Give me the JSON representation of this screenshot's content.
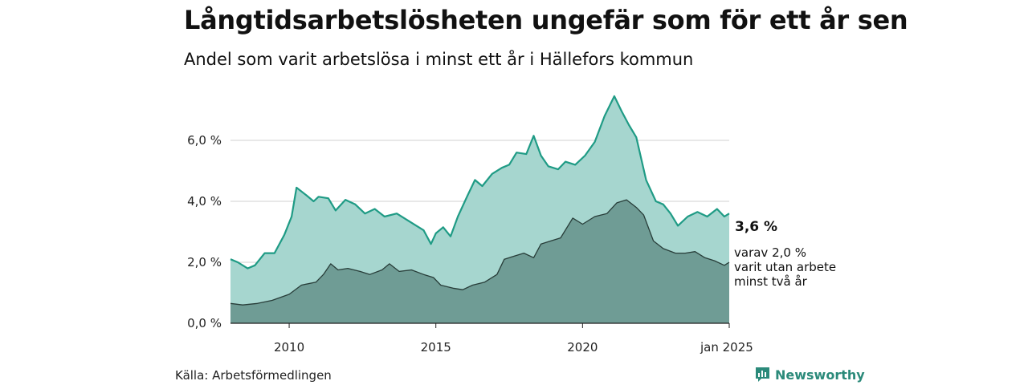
{
  "title": "Långtidsarbetslösheten ungefär som för ett år sen",
  "subtitle": "Andel som varit arbetslösa i minst ett år i Hällefors kommun",
  "source": "Källa: Arbetsförmedlingen",
  "brand": {
    "name": "Newsworthy",
    "icon": "newsworthy-logo-icon"
  },
  "colors": {
    "total_fill": "#a6d6cf",
    "total_line": "#1f9b85",
    "long_fill": "#6f9c95",
    "long_line": "#283d39",
    "grid": "#d9d9d9",
    "brand": "#2b8a7a"
  },
  "chart_data": {
    "type": "area",
    "ylim": [
      0,
      7.5
    ],
    "yticks": [
      0,
      2,
      4,
      6
    ],
    "ytick_labels": [
      "0,0 %",
      "2,0 %",
      "4,0 %",
      "6,0 %"
    ],
    "xlim": [
      "2008-01",
      "2025-01"
    ],
    "xticks": [
      "2010-01",
      "2015-01",
      "2020-01",
      "2025-01"
    ],
    "xtick_labels": [
      "2010",
      "2015",
      "2020",
      "jan 2025"
    ],
    "grid": "horizontal",
    "series": [
      {
        "name": "total",
        "points": [
          [
            "2008-01",
            2.1
          ],
          [
            "2008-04",
            2.0
          ],
          [
            "2008-08",
            1.8
          ],
          [
            "2008-11",
            1.9
          ],
          [
            "2009-03",
            2.3
          ],
          [
            "2009-07",
            2.3
          ],
          [
            "2009-11",
            2.9
          ],
          [
            "2010-02",
            3.5
          ],
          [
            "2010-04",
            4.45
          ],
          [
            "2010-08",
            4.2
          ],
          [
            "2010-11",
            4.0
          ],
          [
            "2011-01",
            4.15
          ],
          [
            "2011-05",
            4.1
          ],
          [
            "2011-08",
            3.7
          ],
          [
            "2011-12",
            4.05
          ],
          [
            "2012-04",
            3.9
          ],
          [
            "2012-08",
            3.6
          ],
          [
            "2012-12",
            3.75
          ],
          [
            "2013-04",
            3.5
          ],
          [
            "2013-09",
            3.6
          ],
          [
            "2014-01",
            3.4
          ],
          [
            "2014-05",
            3.2
          ],
          [
            "2014-08",
            3.05
          ],
          [
            "2014-11",
            2.6
          ],
          [
            "2015-01",
            2.95
          ],
          [
            "2015-04",
            3.15
          ],
          [
            "2015-07",
            2.85
          ],
          [
            "2015-10",
            3.5
          ],
          [
            "2016-02",
            4.2
          ],
          [
            "2016-05",
            4.7
          ],
          [
            "2016-08",
            4.5
          ],
          [
            "2016-12",
            4.9
          ],
          [
            "2017-04",
            5.1
          ],
          [
            "2017-07",
            5.2
          ],
          [
            "2017-10",
            5.6
          ],
          [
            "2018-02",
            5.55
          ],
          [
            "2018-05",
            6.15
          ],
          [
            "2018-08",
            5.5
          ],
          [
            "2018-11",
            5.15
          ],
          [
            "2019-03",
            5.05
          ],
          [
            "2019-06",
            5.3
          ],
          [
            "2019-10",
            5.2
          ],
          [
            "2020-02",
            5.5
          ],
          [
            "2020-06",
            5.95
          ],
          [
            "2020-10",
            6.8
          ],
          [
            "2021-02",
            7.45
          ],
          [
            "2021-05",
            6.95
          ],
          [
            "2021-08",
            6.5
          ],
          [
            "2021-11",
            6.1
          ],
          [
            "2022-03",
            4.7
          ],
          [
            "2022-07",
            4.0
          ],
          [
            "2022-10",
            3.9
          ],
          [
            "2023-01",
            3.6
          ],
          [
            "2023-04",
            3.2
          ],
          [
            "2023-08",
            3.5
          ],
          [
            "2023-12",
            3.65
          ],
          [
            "2024-04",
            3.5
          ],
          [
            "2024-08",
            3.75
          ],
          [
            "2024-11",
            3.5
          ],
          [
            "2025-01",
            3.6
          ]
        ]
      },
      {
        "name": "long",
        "points": [
          [
            "2008-01",
            0.65
          ],
          [
            "2008-06",
            0.6
          ],
          [
            "2008-12",
            0.65
          ],
          [
            "2009-06",
            0.75
          ],
          [
            "2010-01",
            0.95
          ],
          [
            "2010-06",
            1.25
          ],
          [
            "2010-12",
            1.35
          ],
          [
            "2011-03",
            1.6
          ],
          [
            "2011-06",
            1.95
          ],
          [
            "2011-09",
            1.75
          ],
          [
            "2012-01",
            1.8
          ],
          [
            "2012-06",
            1.7
          ],
          [
            "2012-10",
            1.6
          ],
          [
            "2013-03",
            1.75
          ],
          [
            "2013-06",
            1.95
          ],
          [
            "2013-10",
            1.7
          ],
          [
            "2014-03",
            1.75
          ],
          [
            "2014-08",
            1.6
          ],
          [
            "2014-12",
            1.5
          ],
          [
            "2015-03",
            1.25
          ],
          [
            "2015-08",
            1.15
          ],
          [
            "2015-12",
            1.1
          ],
          [
            "2016-04",
            1.25
          ],
          [
            "2016-09",
            1.35
          ],
          [
            "2017-02",
            1.6
          ],
          [
            "2017-05",
            2.1
          ],
          [
            "2017-09",
            2.2
          ],
          [
            "2018-01",
            2.3
          ],
          [
            "2018-05",
            2.15
          ],
          [
            "2018-08",
            2.6
          ],
          [
            "2018-12",
            2.7
          ],
          [
            "2019-04",
            2.8
          ],
          [
            "2019-09",
            3.45
          ],
          [
            "2020-01",
            3.25
          ],
          [
            "2020-06",
            3.5
          ],
          [
            "2020-11",
            3.6
          ],
          [
            "2021-03",
            3.95
          ],
          [
            "2021-07",
            4.05
          ],
          [
            "2021-11",
            3.8
          ],
          [
            "2022-02",
            3.55
          ],
          [
            "2022-06",
            2.7
          ],
          [
            "2022-10",
            2.45
          ],
          [
            "2023-03",
            2.3
          ],
          [
            "2023-07",
            2.3
          ],
          [
            "2023-11",
            2.35
          ],
          [
            "2024-03",
            2.15
          ],
          [
            "2024-07",
            2.05
          ],
          [
            "2024-11",
            1.9
          ],
          [
            "2025-01",
            2.0
          ]
        ]
      }
    ],
    "end_labels": {
      "total": "3,6 %",
      "long": [
        "varav 2,0 %",
        "varit utan arbete",
        "minst två år"
      ]
    }
  }
}
